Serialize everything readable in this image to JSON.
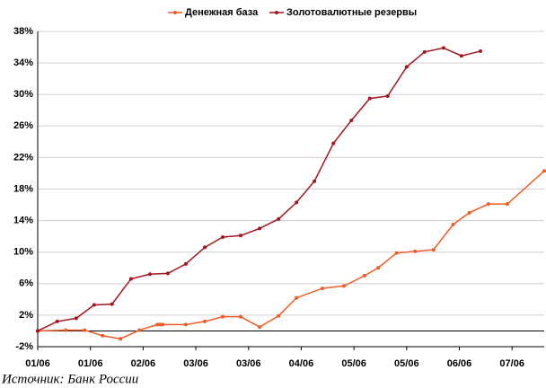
{
  "chart_data": {
    "type": "line",
    "source": "Источник: Банк России",
    "xlim": [
      0,
      9.61
    ],
    "xticks": [
      {
        "value": 0,
        "label": "01/06"
      },
      {
        "value": 1,
        "label": "01/06"
      },
      {
        "value": 2,
        "label": "02/06"
      },
      {
        "value": 3,
        "label": "03/06"
      },
      {
        "value": 4,
        "label": "03/06"
      },
      {
        "value": 5,
        "label": "04/06"
      },
      {
        "value": 6,
        "label": "05/06"
      },
      {
        "value": 7,
        "label": "05/06"
      },
      {
        "value": 8,
        "label": "06/06"
      },
      {
        "value": 9,
        "label": "07/06"
      }
    ],
    "ylim": [
      -2,
      38
    ],
    "yticks": [
      {
        "value": -2,
        "label": "-2%"
      },
      {
        "value": 2,
        "label": "2%"
      },
      {
        "value": 6,
        "label": "6%"
      },
      {
        "value": 10,
        "label": "10%"
      },
      {
        "value": 14,
        "label": "14%"
      },
      {
        "value": 18,
        "label": "18%"
      },
      {
        "value": 22,
        "label": "22%"
      },
      {
        "value": 26,
        "label": "26%"
      },
      {
        "value": 30,
        "label": "30%"
      },
      {
        "value": 34,
        "label": "34%"
      },
      {
        "value": 38,
        "label": "38%"
      }
    ],
    "grid": true,
    "legend": "top",
    "series": [
      {
        "name": "Денежная база",
        "color": "#ef5b25",
        "x": [
          0,
          0.53,
          0.89,
          1.23,
          1.57,
          1.93,
          2.27,
          2.32,
          2.37,
          2.81,
          3.17,
          3.51,
          3.85,
          4.21,
          4.57,
          4.91,
          5.4,
          5.81,
          6.2,
          6.46,
          6.81,
          7.16,
          7.51,
          7.88,
          8.19,
          8.55,
          8.91,
          9.61
        ],
        "values": [
          0,
          0.1,
          0.1,
          -0.6,
          -1.0,
          0.1,
          0.8,
          0.8,
          0.8,
          0.8,
          1.2,
          1.8,
          1.8,
          0.5,
          1.9,
          4.2,
          5.4,
          5.7,
          7.0,
          8.0,
          9.9,
          10.1,
          10.3,
          13.5,
          15.0,
          16.1,
          16.1,
          20.3
        ]
      },
      {
        "name": "Золотовалютные резервы",
        "color": "#a3161f",
        "x": [
          0,
          0.37,
          0.73,
          1.07,
          1.41,
          1.77,
          2.13,
          2.47,
          2.81,
          3.17,
          3.51,
          3.85,
          4.21,
          4.57,
          4.91,
          5.25,
          5.61,
          5.95,
          6.3,
          6.64,
          7.0,
          7.34,
          7.7,
          8.04,
          8.4
        ],
        "values": [
          0,
          1.2,
          1.6,
          3.3,
          3.4,
          6.6,
          7.2,
          7.3,
          8.5,
          10.6,
          11.9,
          12.1,
          13.0,
          14.2,
          16.3,
          19.0,
          23.8,
          26.7,
          29.5,
          29.8,
          33.5,
          35.4,
          35.9,
          34.9,
          35.5
        ]
      }
    ]
  }
}
